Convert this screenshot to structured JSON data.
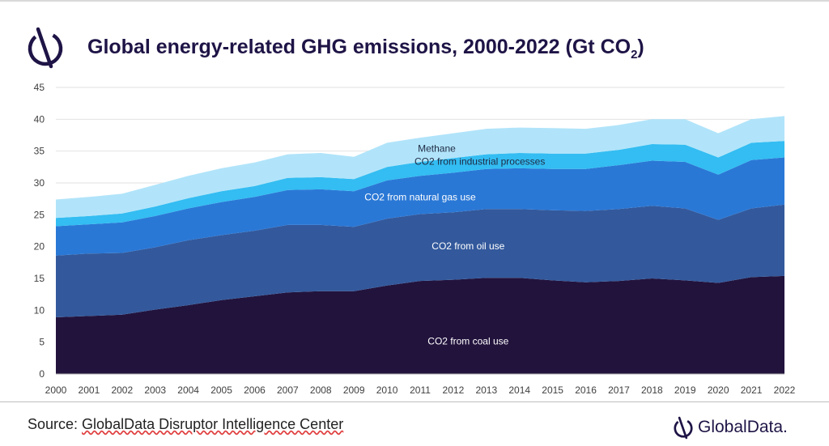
{
  "title": {
    "main": "Global energy-related GHG emissions, 2000-2022 (Gt CO",
    "sub": "2",
    "end": ")"
  },
  "source": {
    "prefix": "Source: ",
    "name": "GlobalData Disruptor Intelligence Center"
  },
  "brand": {
    "name": "GlobalData."
  },
  "colors": {
    "coal": "#22133d",
    "oil": "#33599c",
    "gas": "#2a78d6",
    "industrial": "#33bdf2",
    "methane": "#b1e4fa",
    "title": "#1f1446"
  },
  "chart_data": {
    "type": "area",
    "stacked": true,
    "title": "Global energy-related GHG emissions, 2000-2022 (Gt CO2)",
    "xlabel": "",
    "ylabel": "",
    "ylim": [
      0,
      45
    ],
    "yticks": [
      0,
      5,
      10,
      15,
      20,
      25,
      30,
      35,
      40,
      45
    ],
    "grid": true,
    "x": [
      2000,
      2001,
      2002,
      2003,
      2004,
      2005,
      2006,
      2007,
      2008,
      2009,
      2010,
      2011,
      2012,
      2013,
      2014,
      2015,
      2016,
      2017,
      2018,
      2019,
      2020,
      2021,
      2022
    ],
    "series": [
      {
        "name": "CO2 from coal use",
        "color": "#22133d",
        "values": [
          8.9,
          9.1,
          9.3,
          10.1,
          10.8,
          11.6,
          12.2,
          12.8,
          13.0,
          13.0,
          13.9,
          14.6,
          14.8,
          15.1,
          15.1,
          14.7,
          14.4,
          14.6,
          15.0,
          14.7,
          14.3,
          15.2,
          15.4
        ]
      },
      {
        "name": "CO2 from oil use",
        "color": "#33599c",
        "values": [
          9.7,
          9.8,
          9.7,
          9.8,
          10.2,
          10.2,
          10.3,
          10.6,
          10.4,
          10.1,
          10.5,
          10.5,
          10.6,
          10.8,
          10.8,
          11.0,
          11.2,
          11.3,
          11.4,
          11.3,
          9.9,
          10.8,
          11.2
        ]
      },
      {
        "name": "CO2 from natural gas use",
        "color": "#2a78d6",
        "values": [
          4.6,
          4.6,
          4.8,
          4.9,
          5.0,
          5.2,
          5.3,
          5.5,
          5.6,
          5.6,
          6.0,
          6.0,
          6.2,
          6.3,
          6.4,
          6.5,
          6.6,
          6.9,
          7.1,
          7.3,
          7.1,
          7.6,
          7.4
        ]
      },
      {
        "name": "CO2 from industrial processes",
        "color": "#33bdf2",
        "values": [
          1.3,
          1.3,
          1.4,
          1.5,
          1.6,
          1.7,
          1.7,
          1.9,
          1.9,
          1.9,
          2.1,
          2.2,
          2.3,
          2.3,
          2.4,
          2.4,
          2.4,
          2.4,
          2.6,
          2.7,
          2.7,
          2.7,
          2.6
        ]
      },
      {
        "name": "Methane",
        "color": "#b1e4fa",
        "values": [
          2.9,
          3.0,
          3.1,
          3.4,
          3.5,
          3.6,
          3.7,
          3.7,
          3.8,
          3.5,
          3.8,
          3.8,
          3.9,
          4.0,
          4.0,
          4.0,
          3.9,
          3.9,
          3.9,
          4.0,
          3.8,
          3.7,
          3.9
        ]
      }
    ],
    "annotations": [
      {
        "text": "Methane",
        "series": "Methane"
      },
      {
        "text": "CO2 from industrial processes",
        "series": "CO2 from industrial processes"
      },
      {
        "text": "CO2 from natural gas use",
        "series": "CO2 from natural gas use"
      },
      {
        "text": "CO2 from oil use",
        "series": "CO2 from oil use"
      },
      {
        "text": "CO2 from coal use",
        "series": "CO2 from coal use"
      }
    ]
  }
}
